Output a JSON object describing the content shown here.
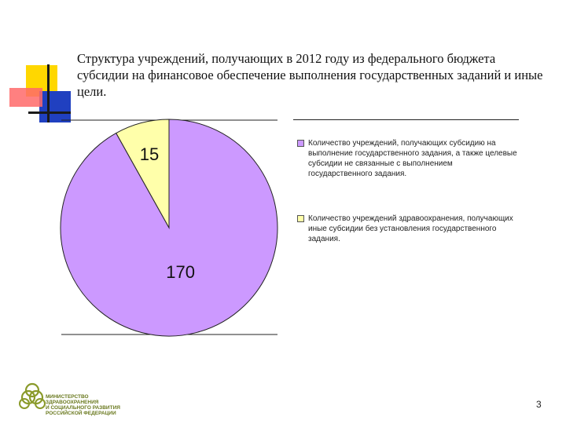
{
  "title": "Структура учреждений, получающих в 2012 году  из федерального бюджета субсидии на финансовое обеспечение  выполнения государственных заданий и иные цели.",
  "chart_data": {
    "type": "pie",
    "series": [
      {
        "values": [
          170,
          15
        ],
        "labels": [
          "170",
          "15"
        ],
        "colors": [
          "#cc99ff",
          "#ffffaa"
        ]
      }
    ],
    "legend": [
      "Количество учреждений, получающих субсидию на выполнение государственного задания, а также целевые субсидии не связанные с выполнением государственного задания.",
      "Количество учреждений здравоохранения, получающих иные субсидии без установления государственного задания."
    ],
    "legend_position": "right"
  },
  "logo": {
    "lines": [
      "МИНИСТЕРСТВО",
      "ЗДРАВООХРАНЕНИЯ",
      "И СОЦИАЛЬНОГО РАЗВИТИЯ",
      "РОССИЙСКОЙ ФЕДЕРАЦИИ"
    ],
    "icon": "ministry-logo-icon",
    "color": "#8a9a2a"
  },
  "slide_number": "3"
}
